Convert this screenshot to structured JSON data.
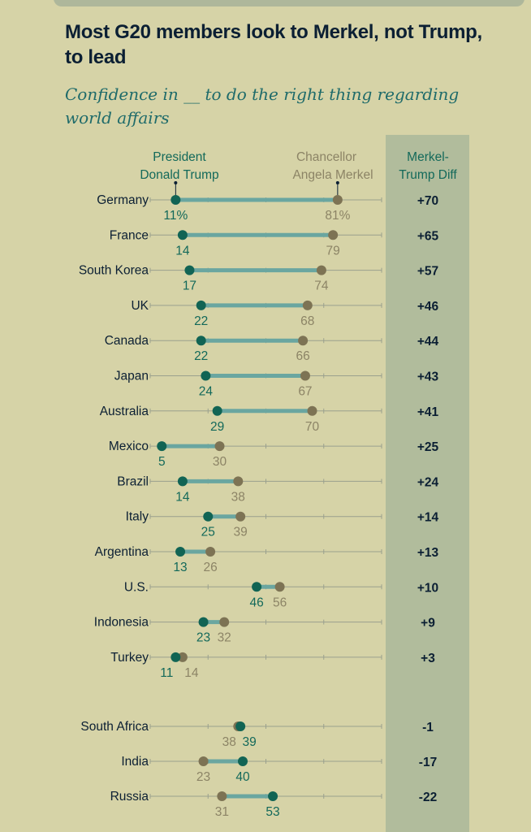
{
  "chart_data": {
    "type": "dot-plot",
    "title": "Most G20 members look to Merkel, not Trump, to lead",
    "subtitle": "Confidence in __ to do the right thing regarding world affairs",
    "xlim": [
      0,
      100
    ],
    "legend": {
      "trump_line1": "President",
      "trump_line2": "Donald Trump",
      "merkel_line1": "Chancellor",
      "merkel_line2": "Angela Merkel",
      "diff_line1": "Merkel-",
      "diff_line2": "Trump Diff"
    },
    "series": [
      {
        "name": "President Donald Trump",
        "color": "#116454"
      },
      {
        "name": "Chancellor Angela Merkel",
        "color": "#7d7354"
      }
    ],
    "rows": [
      {
        "country": "Germany",
        "trump": 11,
        "merkel": 81,
        "trump_label": "11%",
        "merkel_label": "81%",
        "diff": "+70"
      },
      {
        "country": "France",
        "trump": 14,
        "merkel": 79,
        "trump_label": "14",
        "merkel_label": "79",
        "diff": "+65"
      },
      {
        "country": "South Korea",
        "trump": 17,
        "merkel": 74,
        "trump_label": "17",
        "merkel_label": "74",
        "diff": "+57"
      },
      {
        "country": "UK",
        "trump": 22,
        "merkel": 68,
        "trump_label": "22",
        "merkel_label": "68",
        "diff": "+46"
      },
      {
        "country": "Canada",
        "trump": 22,
        "merkel": 66,
        "trump_label": "22",
        "merkel_label": "66",
        "diff": "+44"
      },
      {
        "country": "Japan",
        "trump": 24,
        "merkel": 67,
        "trump_label": "24",
        "merkel_label": "67",
        "diff": "+43"
      },
      {
        "country": "Australia",
        "trump": 29,
        "merkel": 70,
        "trump_label": "29",
        "merkel_label": "70",
        "diff": "+41"
      },
      {
        "country": "Mexico",
        "trump": 5,
        "merkel": 30,
        "trump_label": "5",
        "merkel_label": "30",
        "diff": "+25"
      },
      {
        "country": "Brazil",
        "trump": 14,
        "merkel": 38,
        "trump_label": "14",
        "merkel_label": "38",
        "diff": "+24"
      },
      {
        "country": "Italy",
        "trump": 25,
        "merkel": 39,
        "trump_label": "25",
        "merkel_label": "39",
        "diff": "+14"
      },
      {
        "country": "Argentina",
        "trump": 13,
        "merkel": 26,
        "trump_label": "13",
        "merkel_label": "26",
        "diff": "+13"
      },
      {
        "country": "U.S.",
        "trump": 46,
        "merkel": 56,
        "trump_label": "46",
        "merkel_label": "56",
        "diff": "+10"
      },
      {
        "country": "Indonesia",
        "trump": 23,
        "merkel": 32,
        "trump_label": "23",
        "merkel_label": "32",
        "diff": "+9"
      },
      {
        "country": "Turkey",
        "trump": 11,
        "merkel": 14,
        "trump_label": "11",
        "merkel_label": "14",
        "diff": "+3"
      },
      {
        "country": "South Africa",
        "trump": 39,
        "merkel": 38,
        "trump_label": "39",
        "merkel_label": "38",
        "diff": "-1"
      },
      {
        "country": "India",
        "trump": 40,
        "merkel": 23,
        "trump_label": "40",
        "merkel_label": "23",
        "diff": "-17"
      },
      {
        "country": "Russia",
        "trump": 53,
        "merkel": 31,
        "trump_label": "53",
        "merkel_label": "31",
        "diff": "-22"
      }
    ]
  }
}
